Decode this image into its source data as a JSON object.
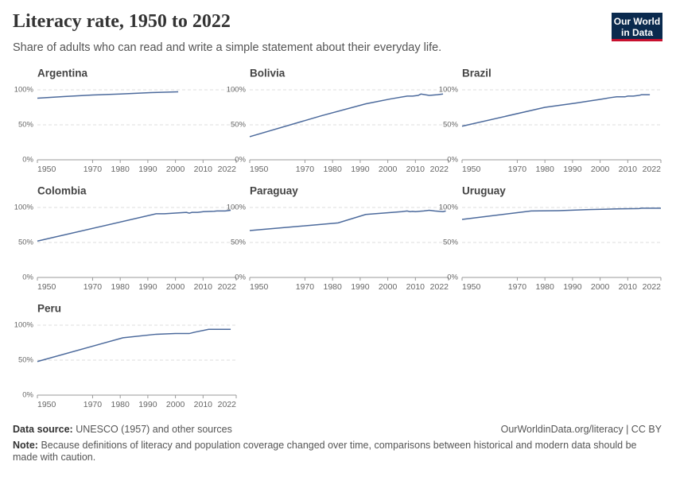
{
  "header": {
    "title": "Literacy rate, 1950 to 2022",
    "subtitle": "Share of adults who can read and write a simple statement about their everyday life.",
    "logo": "Our World in Data"
  },
  "footer": {
    "source_label": "Data source:",
    "source": "UNESCO (1957) and other sources",
    "link": "OurWorldinData.org/literacy | CC BY",
    "note_label": "Note:",
    "note": "Because definitions of literacy and population coverage changed over time, comparisons between historical and modern data should be made with caution."
  },
  "chart_data": [
    {
      "type": "line",
      "title": "Argentina",
      "x": [
        1950,
        1960,
        1970,
        1980,
        1991,
        2001
      ],
      "values": [
        88,
        90.5,
        92.6,
        94,
        96,
        97.2
      ],
      "color": "#4c6a9c",
      "xlim": [
        1950,
        2022
      ],
      "ylim": [
        0,
        100
      ],
      "xticks": [
        1950,
        1970,
        1980,
        1990,
        2000,
        2010,
        2022
      ],
      "yticks": [
        {
          "value": 0,
          "label": "0%"
        },
        {
          "value": 50,
          "label": "50%"
        },
        {
          "value": 100,
          "label": "100%"
        }
      ],
      "grid": true
    },
    {
      "type": "line",
      "title": "Bolivia",
      "x": [
        1950,
        1976,
        1992,
        2001,
        2007,
        2009,
        2011,
        2012,
        2015,
        2018,
        2020
      ],
      "values": [
        33,
        63,
        80,
        87,
        91,
        91,
        92,
        94,
        92,
        93,
        94
      ],
      "color": "#4c6a9c",
      "xlim": [
        1950,
        2022
      ],
      "ylim": [
        0,
        100
      ],
      "xticks": [
        1950,
        1970,
        1980,
        1990,
        2000,
        2010,
        2022
      ],
      "yticks": [
        {
          "value": 0,
          "label": "0%"
        },
        {
          "value": 50,
          "label": "50%"
        },
        {
          "value": 100,
          "label": "100%"
        }
      ],
      "grid": true
    },
    {
      "type": "line",
      "title": "Brazil",
      "x": [
        1950,
        1980,
        1991,
        2000,
        2004,
        2006,
        2009,
        2010,
        2012,
        2014,
        2015,
        2018
      ],
      "values": [
        48,
        75,
        81,
        86.4,
        89,
        90,
        90,
        91,
        91,
        92,
        93,
        93
      ],
      "color": "#4c6a9c",
      "xlim": [
        1950,
        2022
      ],
      "ylim": [
        0,
        100
      ],
      "xticks": [
        1950,
        1970,
        1980,
        1990,
        2000,
        2010,
        2022
      ],
      "yticks": [
        {
          "value": 0,
          "label": "0%"
        },
        {
          "value": 50,
          "label": "50%"
        },
        {
          "value": 100,
          "label": "100%"
        }
      ],
      "grid": true
    },
    {
      "type": "line",
      "title": "Colombia",
      "x": [
        1950,
        1993,
        1996,
        2000,
        2004,
        2005,
        2006,
        2008,
        2010,
        2014,
        2015,
        2018,
        2020
      ],
      "values": [
        52,
        91,
        91,
        92,
        93,
        92,
        93,
        93,
        94,
        94.6,
        95,
        95,
        96
      ],
      "color": "#4c6a9c",
      "xlim": [
        1950,
        2022
      ],
      "ylim": [
        0,
        100
      ],
      "xticks": [
        1950,
        1970,
        1980,
        1990,
        2000,
        2010,
        2022
      ],
      "yticks": [
        {
          "value": 0,
          "label": "0%"
        },
        {
          "value": 50,
          "label": "50%"
        },
        {
          "value": 100,
          "label": "100%"
        }
      ],
      "grid": true
    },
    {
      "type": "line",
      "title": "Paraguay",
      "x": [
        1950,
        1982,
        1992,
        2005,
        2007,
        2008,
        2009,
        2010,
        2012,
        2013,
        2015,
        2017,
        2020,
        2021
      ],
      "values": [
        67,
        78,
        90,
        94,
        95,
        94,
        94.5,
        94,
        94.7,
        95,
        96,
        95,
        94,
        95
      ],
      "color": "#4c6a9c",
      "xlim": [
        1950,
        2022
      ],
      "ylim": [
        0,
        100
      ],
      "xticks": [
        1950,
        1970,
        1980,
        1990,
        2000,
        2010,
        2022
      ],
      "yticks": [
        {
          "value": 0,
          "label": "0%"
        },
        {
          "value": 50,
          "label": "50%"
        },
        {
          "value": 100,
          "label": "100%"
        }
      ],
      "grid": true
    },
    {
      "type": "line",
      "title": "Uruguay",
      "x": [
        1950,
        1975,
        1985,
        1996,
        2006,
        2014,
        2015,
        2022
      ],
      "values": [
        83,
        95,
        95.5,
        97,
        98,
        98.5,
        99,
        99
      ],
      "color": "#4c6a9c",
      "xlim": [
        1950,
        2022
      ],
      "ylim": [
        0,
        100
      ],
      "xticks": [
        1950,
        1970,
        1980,
        1990,
        2000,
        2010,
        2022
      ],
      "yticks": [
        {
          "value": 0,
          "label": "0%"
        },
        {
          "value": 50,
          "label": "50%"
        },
        {
          "value": 100,
          "label": "100%"
        }
      ],
      "grid": true
    },
    {
      "type": "line",
      "title": "Peru",
      "x": [
        1950,
        1981,
        1993,
        2000,
        2005,
        2007,
        2012,
        2020
      ],
      "values": [
        48,
        82,
        87,
        88,
        88,
        90,
        94,
        94
      ],
      "color": "#4c6a9c",
      "xlim": [
        1950,
        2022
      ],
      "ylim": [
        0,
        100
      ],
      "xticks": [
        1950,
        1970,
        1980,
        1990,
        2000,
        2010,
        2022
      ],
      "yticks": [
        {
          "value": 0,
          "label": "0%"
        },
        {
          "value": 50,
          "label": "50%"
        },
        {
          "value": 100,
          "label": "100%"
        }
      ],
      "grid": true
    }
  ]
}
